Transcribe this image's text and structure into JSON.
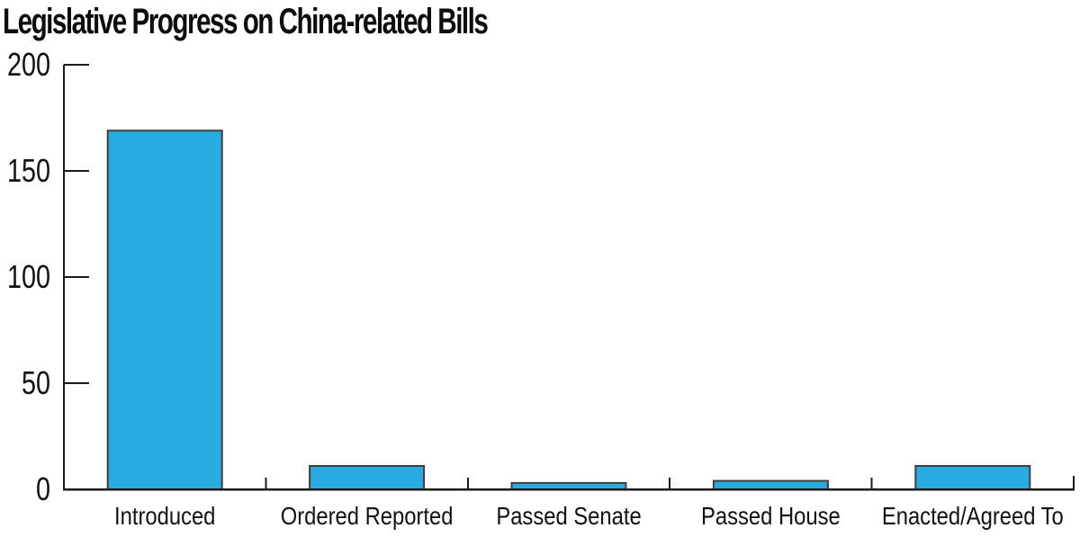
{
  "chart_data": {
    "type": "bar",
    "title": "Legislative Progress on China-related Bills",
    "categories": [
      "Introduced",
      "Ordered Reported",
      "Passed Senate",
      "Passed House",
      "Enacted/Agreed To"
    ],
    "values": [
      169,
      11,
      3,
      4,
      11
    ],
    "xlabel": "",
    "ylabel": "",
    "ylim": [
      0,
      200
    ],
    "yticks": [
      0,
      50,
      100,
      150,
      200
    ],
    "grid": "off",
    "legend": "none",
    "colors": {
      "bar_fill": "#29ABE2",
      "bar_stroke": "#3F3F3F",
      "axis": "#1A1A1A",
      "text": "#121212",
      "background": "#FFFFFF"
    }
  }
}
